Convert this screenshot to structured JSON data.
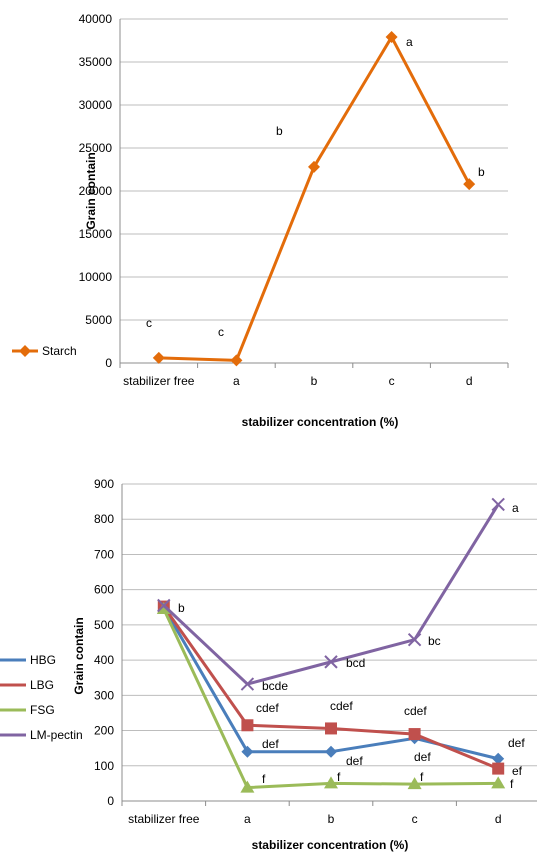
{
  "chart_data": [
    {
      "type": "line",
      "title": "",
      "xlabel": "stabilizer concentration (%)",
      "ylabel": "Grain contain",
      "ylim": [
        0,
        40000
      ],
      "yticks": [
        0,
        5000,
        10000,
        15000,
        20000,
        25000,
        30000,
        35000,
        40000
      ],
      "categories": [
        "stabilizer free",
        "a",
        "b",
        "c",
        "d"
      ],
      "grid": true,
      "legend_position": "left",
      "series": [
        {
          "name": "Starch",
          "color": "#e36c0a",
          "marker": "diamond",
          "values": [
            600,
            300,
            22800,
            37900,
            20800
          ],
          "labels": [
            "c",
            "c",
            "b",
            "a",
            "b"
          ]
        }
      ]
    },
    {
      "type": "line",
      "title": "",
      "xlabel": "stabilizer concentration (%)",
      "ylabel": "Grain contain",
      "ylim": [
        0,
        900
      ],
      "yticks": [
        0,
        100,
        200,
        300,
        400,
        500,
        600,
        700,
        800,
        900
      ],
      "categories": [
        "stabilizer free",
        "a",
        "b",
        "c",
        "d"
      ],
      "grid": true,
      "legend_position": "left",
      "series": [
        {
          "name": "HBG",
          "color": "#4a7ebb",
          "marker": "diamond",
          "values": [
            550,
            140,
            140,
            178,
            120
          ],
          "labels": [
            "",
            "def",
            "def",
            "def",
            "def"
          ]
        },
        {
          "name": "LBG",
          "color": "#c0504d",
          "marker": "square",
          "values": [
            552,
            215,
            206,
            190,
            92
          ],
          "labels": [
            "",
            "cdef",
            "cdef",
            "cdef",
            "ef"
          ]
        },
        {
          "name": "FSG",
          "color": "#9bbb59",
          "marker": "triangle",
          "values": [
            545,
            38,
            50,
            48,
            50
          ],
          "labels": [
            "",
            "f",
            "f",
            "f",
            "f"
          ]
        },
        {
          "name": "LM-pectin",
          "color": "#8064a2",
          "marker": "x",
          "values": [
            555,
            332,
            395,
            458,
            842
          ],
          "labels": [
            "b",
            "bcde",
            "bcd",
            "bc",
            "a"
          ]
        }
      ]
    }
  ]
}
